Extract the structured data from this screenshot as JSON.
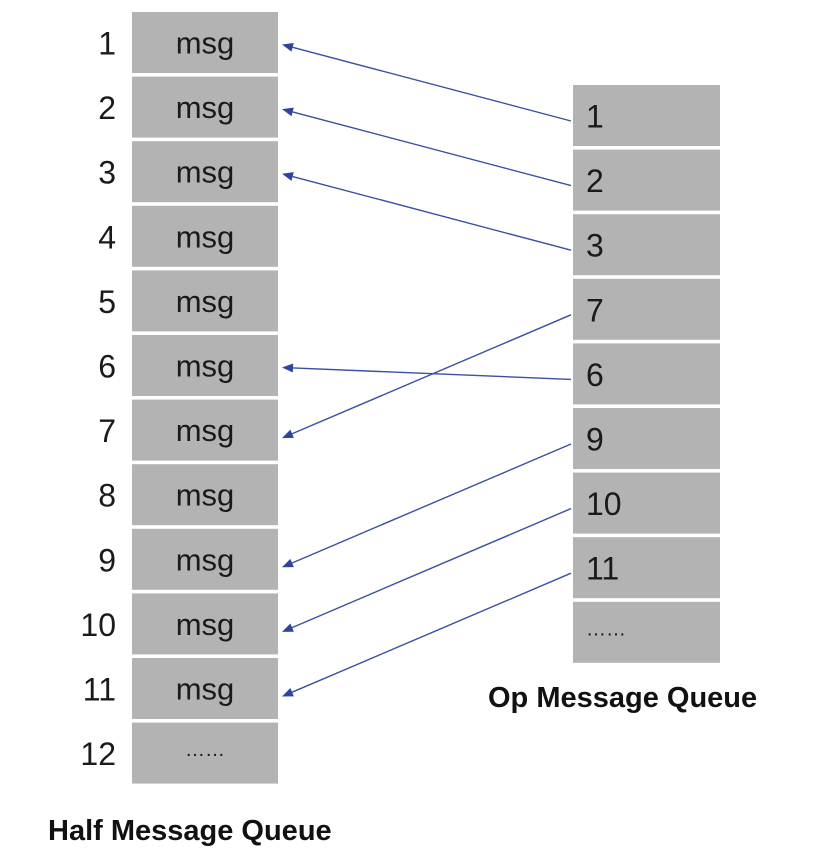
{
  "half_queue": {
    "title": "Half Message Queue",
    "cell_fill": "#b3b3b3",
    "rows": [
      {
        "index": "1",
        "label": "msg"
      },
      {
        "index": "2",
        "label": "msg"
      },
      {
        "index": "3",
        "label": "msg"
      },
      {
        "index": "4",
        "label": "msg"
      },
      {
        "index": "5",
        "label": "msg"
      },
      {
        "index": "6",
        "label": "msg"
      },
      {
        "index": "7",
        "label": "msg"
      },
      {
        "index": "8",
        "label": "msg"
      },
      {
        "index": "9",
        "label": "msg"
      },
      {
        "index": "10",
        "label": "msg"
      },
      {
        "index": "11",
        "label": "msg"
      },
      {
        "index": "12",
        "label": "……"
      }
    ]
  },
  "op_queue": {
    "title": "Op Message Queue",
    "cell_fill": "#b3b3b3",
    "rows": [
      {
        "label": "1"
      },
      {
        "label": "2"
      },
      {
        "label": "3"
      },
      {
        "label": "7"
      },
      {
        "label": "6"
      },
      {
        "label": "9"
      },
      {
        "label": "10"
      },
      {
        "label": "11"
      },
      {
        "label": "……"
      }
    ]
  },
  "links": [
    {
      "from_op": 0,
      "to_half": 0
    },
    {
      "from_op": 1,
      "to_half": 1
    },
    {
      "from_op": 2,
      "to_half": 2
    },
    {
      "from_op": 3,
      "to_half": 6
    },
    {
      "from_op": 4,
      "to_half": 5
    },
    {
      "from_op": 5,
      "to_half": 8
    },
    {
      "from_op": 6,
      "to_half": 9
    },
    {
      "from_op": 7,
      "to_half": 10
    }
  ],
  "arrow_color": "#2f44a0"
}
